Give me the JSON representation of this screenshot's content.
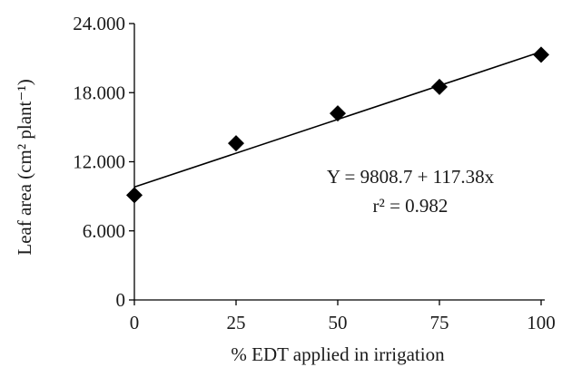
{
  "chart_data": {
    "type": "scatter",
    "xlabel": "% EDT applied in irrigation",
    "ylabel": "Leaf area (cm² plant⁻¹)",
    "xlim": [
      0,
      100
    ],
    "ylim": [
      0,
      24000
    ],
    "x_ticks": [
      0,
      25,
      50,
      75,
      100
    ],
    "x_tick_labels": [
      "0",
      "25",
      "50",
      "75",
      "100"
    ],
    "y_ticks": [
      0,
      6000,
      12000,
      18000,
      24000
    ],
    "y_tick_labels": [
      "0",
      "6.000",
      "12.000",
      "18.000",
      "24.000"
    ],
    "grid": false,
    "series": [
      {
        "marker": "diamond",
        "color": "#000000",
        "x": [
          0,
          25,
          50,
          75,
          100
        ],
        "y": [
          9100,
          13600,
          16200,
          18500,
          21300
        ]
      }
    ],
    "trendline": {
      "intercept": 9808.7,
      "slope": 117.38,
      "x_range": [
        0,
        100
      ],
      "color": "#000000"
    },
    "annotations": {
      "equation": "Y = 9808.7 + 117.38x",
      "r_squared": "r² = 0.982"
    }
  }
}
